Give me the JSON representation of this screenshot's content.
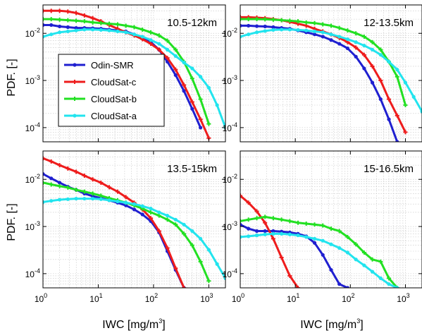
{
  "chart_data": {
    "type": "line",
    "xlabel": "IWC [mg/m",
    "xlabel_sup": "3",
    "xlabel_end": "]",
    "ylabel": "PDF. [-]",
    "x_scale": "log",
    "y_scale": "log",
    "xlim": [
      1,
      2000
    ],
    "ylim": [
      5e-05,
      0.04
    ],
    "x_ticks": [
      1,
      10,
      100,
      1000
    ],
    "x_tick_base": "10",
    "x_tick_exps": [
      "0",
      "1",
      "2",
      "3"
    ],
    "y_ticks": [
      0.0001,
      0.001,
      0.01
    ],
    "y_tick_base": "10",
    "y_tick_exps": [
      "-4",
      "-3",
      "-2"
    ],
    "grid": true,
    "legend": {
      "placement": "panel1-left",
      "entries": [
        "Odin-SMR",
        "CloudSat-c",
        "CloudSat-b",
        "CloudSat-a"
      ]
    },
    "series_colors": {
      "Odin-SMR": "#1f1fd0",
      "CloudSat-c": "#ee1c1c",
      "CloudSat-b": "#22e022",
      "CloudSat-a": "#22e4ee"
    },
    "panels": [
      {
        "title": "10.5-12km",
        "series": [
          {
            "name": "Odin-SMR",
            "x": [
              1,
              1.41,
              2,
              2.82,
              3.98,
              5.62,
              7.94,
              11.2,
              15.8,
              22.4,
              31.6,
              44.7,
              63.1,
              89.1,
              126,
              178,
              251,
              355,
              501,
              708
            ],
            "y": [
              0.015,
              0.015,
              0.014,
              0.0135,
              0.013,
              0.013,
              0.0128,
              0.0125,
              0.012,
              0.0115,
              0.011,
              0.0095,
              0.008,
              0.0065,
              0.0045,
              0.0025,
              0.0013,
              0.0006,
              0.00025,
              0.0001
            ]
          },
          {
            "name": "CloudSat-c",
            "x": [
              1,
              1.41,
              2,
              2.82,
              3.98,
              5.62,
              7.94,
              11.2,
              15.8,
              22.4,
              31.6,
              44.7,
              63.1,
              89.1,
              126,
              178,
              251,
              355,
              501,
              708,
              1000
            ],
            "y": [
              0.03,
              0.03,
              0.03,
              0.029,
              0.027,
              0.024,
              0.021,
              0.018,
              0.015,
              0.0125,
              0.0105,
              0.009,
              0.0075,
              0.006,
              0.0045,
              0.003,
              0.0017,
              0.0008,
              0.00035,
              0.00015,
              6e-05
            ]
          },
          {
            "name": "CloudSat-b",
            "x": [
              1,
              1.41,
              2,
              2.82,
              3.98,
              5.62,
              7.94,
              11.2,
              15.8,
              22.4,
              31.6,
              44.7,
              63.1,
              89.1,
              126,
              178,
              251,
              355,
              501,
              708,
              1000
            ],
            "y": [
              0.02,
              0.02,
              0.0195,
              0.019,
              0.0185,
              0.018,
              0.017,
              0.0165,
              0.016,
              0.0155,
              0.0145,
              0.0135,
              0.012,
              0.0105,
              0.009,
              0.007,
              0.0045,
              0.0025,
              0.0011,
              0.0004,
              0.00012
            ]
          },
          {
            "name": "CloudSat-a",
            "x": [
              1,
              1.41,
              2,
              2.82,
              3.98,
              5.62,
              7.94,
              11.2,
              15.8,
              22.4,
              31.6,
              44.7,
              63.1,
              89.1,
              126,
              178,
              251,
              355,
              501,
              708,
              1000,
              1412,
              2000
            ],
            "y": [
              0.0085,
              0.0095,
              0.0105,
              0.011,
              0.0115,
              0.012,
              0.012,
              0.0118,
              0.0115,
              0.011,
              0.0105,
              0.0095,
              0.0085,
              0.0072,
              0.006,
              0.0045,
              0.0033,
              0.0024,
              0.0018,
              0.0012,
              0.0007,
              0.0003,
              0.0001
            ]
          }
        ]
      },
      {
        "title": "12-13.5km",
        "series": [
          {
            "name": "Odin-SMR",
            "x": [
              1,
              1.41,
              2,
              2.82,
              3.98,
              5.62,
              7.94,
              11.2,
              15.8,
              22.4,
              31.6,
              44.7,
              63.1,
              89.1,
              126,
              178,
              251,
              355,
              501,
              708
            ],
            "y": [
              0.0145,
              0.0145,
              0.0142,
              0.014,
              0.0135,
              0.013,
              0.0125,
              0.0115,
              0.0105,
              0.0095,
              0.0085,
              0.0072,
              0.006,
              0.0048,
              0.0032,
              0.0018,
              0.0009,
              0.0004,
              0.00015,
              5e-05
            ]
          },
          {
            "name": "CloudSat-c",
            "x": [
              1,
              1.41,
              2,
              2.82,
              3.98,
              5.62,
              7.94,
              11.2,
              15.8,
              22.4,
              31.6,
              44.7,
              63.1,
              89.1,
              126,
              178,
              251,
              355,
              501,
              708,
              1000
            ],
            "y": [
              0.022,
              0.022,
              0.0215,
              0.021,
              0.02,
              0.019,
              0.0175,
              0.016,
              0.0145,
              0.0125,
              0.011,
              0.0095,
              0.008,
              0.0065,
              0.005,
              0.0035,
              0.002,
              0.001,
              0.0004,
              0.00018,
              8e-05
            ]
          },
          {
            "name": "CloudSat-b",
            "x": [
              1,
              1.41,
              2,
              2.82,
              3.98,
              5.62,
              7.94,
              11.2,
              15.8,
              22.4,
              31.6,
              44.7,
              63.1,
              89.1,
              126,
              178,
              251,
              355,
              501,
              708,
              1000
            ],
            "y": [
              0.02,
              0.02,
              0.02,
              0.0198,
              0.0195,
              0.019,
              0.0185,
              0.018,
              0.017,
              0.0165,
              0.0155,
              0.0145,
              0.013,
              0.0115,
              0.01,
              0.0085,
              0.0065,
              0.0045,
              0.0025,
              0.0012,
              0.0003
            ]
          },
          {
            "name": "CloudSat-a",
            "x": [
              1,
              1.41,
              2,
              2.82,
              3.98,
              5.62,
              7.94,
              11.2,
              15.8,
              22.4,
              31.6,
              44.7,
              63.1,
              89.1,
              126,
              178,
              251,
              355,
              501,
              708,
              1000,
              1412,
              2000
            ],
            "y": [
              0.0085,
              0.0095,
              0.0105,
              0.0112,
              0.0118,
              0.012,
              0.012,
              0.0118,
              0.0115,
              0.011,
              0.0105,
              0.0095,
              0.0085,
              0.0075,
              0.0065,
              0.0055,
              0.0045,
              0.0035,
              0.0025,
              0.0017,
              0.0009,
              0.00045,
              0.00022
            ]
          }
        ]
      },
      {
        "title": "13.5-15km",
        "series": [
          {
            "name": "Odin-SMR",
            "x": [
              1,
              1.41,
              2,
              2.82,
              3.98,
              5.62,
              7.94,
              11.2,
              15.8,
              22.4,
              31.6,
              44.7,
              63.1,
              89.1,
              126,
              178,
              251,
              355
            ],
            "y": [
              0.013,
              0.0105,
              0.0085,
              0.007,
              0.006,
              0.005,
              0.0044,
              0.004,
              0.0036,
              0.0032,
              0.0028,
              0.0023,
              0.0018,
              0.0013,
              0.00075,
              0.0003,
              0.00012,
              5e-05
            ]
          },
          {
            "name": "CloudSat-c",
            "x": [
              1,
              1.41,
              2,
              2.82,
              3.98,
              5.62,
              7.94,
              11.2,
              15.8,
              22.4,
              31.6,
              44.7,
              63.1,
              89.1,
              126,
              178,
              251,
              355
            ],
            "y": [
              0.028,
              0.024,
              0.02,
              0.017,
              0.0145,
              0.012,
              0.01,
              0.0085,
              0.0068,
              0.0055,
              0.0042,
              0.0032,
              0.0023,
              0.0015,
              0.0008,
              0.00035,
              0.00013,
              5e-05
            ]
          },
          {
            "name": "CloudSat-b",
            "x": [
              1,
              1.41,
              2,
              2.82,
              3.98,
              5.62,
              7.94,
              11.2,
              15.8,
              22.4,
              31.6,
              44.7,
              63.1,
              89.1,
              126,
              178,
              251,
              355,
              501,
              708,
              1000
            ],
            "y": [
              0.0085,
              0.0078,
              0.0072,
              0.0067,
              0.006,
              0.0055,
              0.005,
              0.0045,
              0.004,
              0.0036,
              0.0032,
              0.0028,
              0.0024,
              0.002,
              0.0017,
              0.0014,
              0.0011,
              0.0007,
              0.0004,
              0.00018,
              7e-05
            ]
          },
          {
            "name": "CloudSat-a",
            "x": [
              1,
              1.41,
              2,
              2.82,
              3.98,
              5.62,
              7.94,
              11.2,
              15.8,
              22.4,
              31.6,
              44.7,
              63.1,
              89.1,
              126,
              178,
              251,
              355,
              501,
              708,
              1000,
              1412,
              2000
            ],
            "y": [
              0.0033,
              0.0035,
              0.0037,
              0.0038,
              0.0039,
              0.0039,
              0.0039,
              0.0038,
              0.0036,
              0.0034,
              0.0032,
              0.003,
              0.0027,
              0.0024,
              0.002,
              0.0017,
              0.0014,
              0.0011,
              0.0008,
              0.00055,
              0.00032,
              0.00016,
              8e-05
            ]
          }
        ]
      },
      {
        "title": "15-16.5km",
        "series": [
          {
            "name": "Odin-SMR",
            "x": [
              1,
              1.41,
              2,
              2.82,
              3.98,
              5.62,
              7.94,
              11.2,
              15.8,
              22.4,
              31.6,
              44.7,
              63.1,
              89.1
            ],
            "y": [
              0.0011,
              0.0009,
              0.0008,
              0.0008,
              0.0008,
              0.00078,
              0.00075,
              0.0007,
              0.00062,
              0.00045,
              0.00025,
              0.00012,
              6e-05,
              5e-05
            ]
          },
          {
            "name": "CloudSat-c",
            "x": [
              1,
              1.41,
              2,
              2.82,
              3.98,
              5.62,
              7.94,
              11.2
            ],
            "y": [
              0.0045,
              0.0032,
              0.0021,
              0.0012,
              0.00055,
              0.00022,
              9e-05,
              5e-05
            ]
          },
          {
            "name": "CloudSat-b",
            "x": [
              1,
              1.41,
              2,
              2.82,
              3.98,
              5.62,
              7.94,
              11.2,
              15.8,
              22.4,
              31.6,
              44.7,
              63.1,
              89.1,
              126,
              178,
              251,
              355,
              501,
              708
            ],
            "y": [
              0.0013,
              0.0014,
              0.0015,
              0.0016,
              0.0015,
              0.0014,
              0.0013,
              0.0012,
              0.00115,
              0.0011,
              0.00105,
              0.0009,
              0.0008,
              0.0006,
              0.00042,
              0.00028,
              0.0002,
              0.00018,
              8e-05,
              5e-05
            ]
          },
          {
            "name": "CloudSat-a",
            "x": [
              1,
              1.41,
              2,
              2.82,
              3.98,
              5.62,
              7.94,
              11.2,
              15.8,
              22.4,
              31.6,
              44.7,
              63.1,
              89.1,
              126,
              178,
              251,
              355,
              501,
              708
            ],
            "y": [
              0.0006,
              0.00062,
              0.00065,
              0.00068,
              0.0007,
              0.0007,
              0.00068,
              0.00065,
              0.0006,
              0.00055,
              0.0005,
              0.00042,
              0.00035,
              0.00028,
              0.0002,
              0.00015,
              0.00011,
              8e-05,
              6e-05,
              5e-05
            ]
          }
        ]
      }
    ]
  }
}
